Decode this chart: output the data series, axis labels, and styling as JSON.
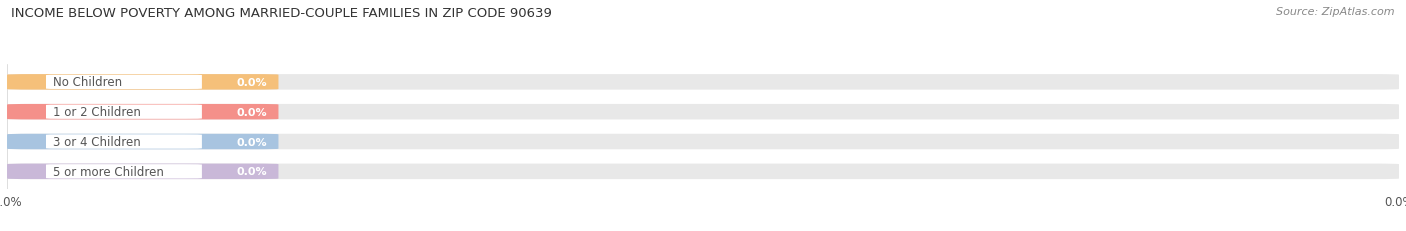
{
  "title": "INCOME BELOW POVERTY AMONG MARRIED-COUPLE FAMILIES IN ZIP CODE 90639",
  "source": "Source: ZipAtlas.com",
  "categories": [
    "No Children",
    "1 or 2 Children",
    "3 or 4 Children",
    "5 or more Children"
  ],
  "values": [
    0.0,
    0.0,
    0.0,
    0.0
  ],
  "bar_colors": [
    "#f5c07a",
    "#f4908a",
    "#a8c4e0",
    "#c9b8d8"
  ],
  "bar_bg_color": "#e8e8e8",
  "bar_label_color": "#ffffff",
  "label_text_color": "#555555",
  "title_color": "#333333",
  "source_color": "#888888",
  "background_color": "#ffffff",
  "figsize": [
    14.06,
    2.32
  ],
  "dpi": 100
}
